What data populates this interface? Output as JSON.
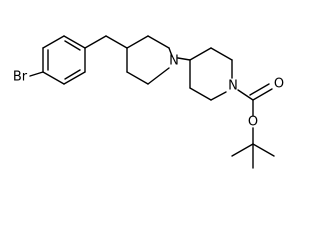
{
  "labels": {
    "bromine": "Br",
    "nitrogen_1": "N",
    "nitrogen_2": "N",
    "carbonyl_oxygen": "O",
    "ester_oxygen": "O"
  }
}
